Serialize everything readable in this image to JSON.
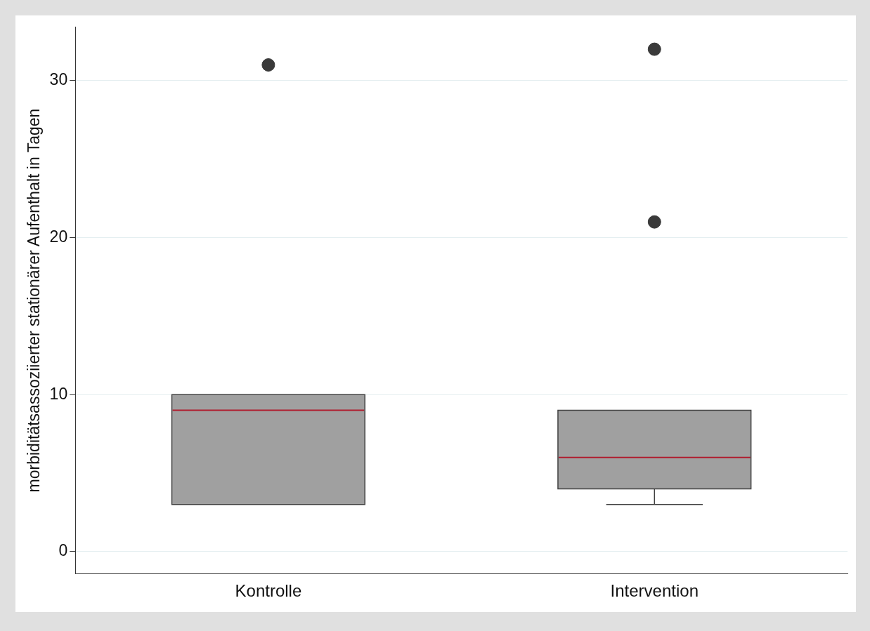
{
  "chart_data": {
    "type": "box",
    "ylabel": "morbiditätsassoziierter stationärer Aufenthalt in Tagen",
    "categories": [
      "Kontrolle",
      "Intervention"
    ],
    "boxes": [
      {
        "low": 3,
        "q1": 3,
        "median": 9,
        "q3": 10,
        "high": 10,
        "outliers": [
          31
        ]
      },
      {
        "low": 3,
        "q1": 4,
        "median": 6,
        "q3": 9,
        "high": 9,
        "outliers": [
          21,
          32
        ]
      }
    ],
    "color": "#a0a0a0",
    "ylim": [
      -1.4,
      33.4
    ],
    "yticks": [
      0,
      10,
      20,
      30
    ],
    "grid": "y"
  }
}
